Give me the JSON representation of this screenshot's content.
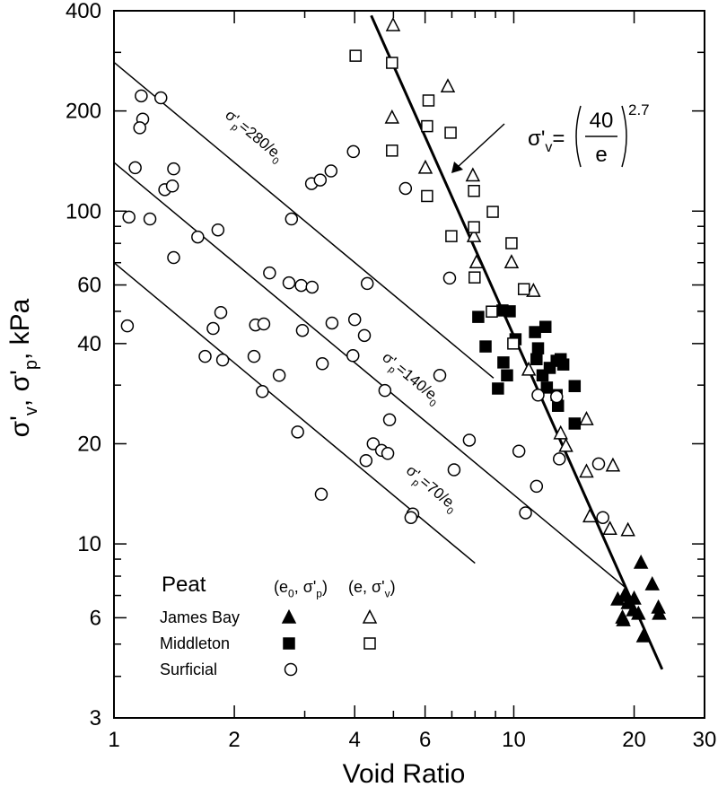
{
  "chart_data": {
    "type": "scatter",
    "xlabel": "Void Ratio",
    "ylabel": [
      "σ'",
      "v",
      ", σ'",
      "p",
      ", kPa"
    ],
    "xscale": "log",
    "yscale": "log",
    "xlim": [
      1,
      30
    ],
    "ylim": [
      3,
      400
    ],
    "xticks": [
      1,
      2,
      4,
      6,
      10,
      20,
      30
    ],
    "yticks": [
      3,
      6,
      10,
      20,
      40,
      60,
      100,
      200,
      400
    ],
    "xminorticks": [
      3,
      5,
      7,
      8,
      9
    ],
    "yminorticks": [
      4,
      5,
      7,
      8,
      9,
      30,
      50,
      70,
      80,
      90,
      300
    ],
    "color": "#000000",
    "legend": {
      "title": "Peat",
      "filled_heading": [
        "(e",
        "0",
        ", σ'",
        "p",
        ")"
      ],
      "open_heading": [
        "(e, σ'",
        "v",
        ")"
      ],
      "corner": "lower left"
    },
    "series": [
      {
        "name": "James Bay",
        "marker": "triangle",
        "filled": true,
        "x": [
          20.8,
          18.2,
          18.9,
          19.3,
          20.0,
          18.7,
          18.8,
          19.9,
          20.5,
          21.1,
          22.2,
          23.0,
          23.1
        ],
        "values": [
          8.78,
          6.81,
          6.98,
          6.64,
          6.85,
          6.01,
          5.9,
          6.32,
          6.17,
          5.28,
          7.56,
          6.44,
          6.17
        ]
      },
      {
        "name": "James Bay",
        "marker": "triangle",
        "filled": false,
        "x": [
          4.99,
          6.84,
          4.96,
          6.01,
          7.9,
          7.95,
          8.07,
          9.87,
          11.2,
          10.9,
          13.1,
          13.5,
          15.2,
          15.2,
          15.5,
          17.7,
          17.4,
          19.3
        ],
        "values": [
          362,
          237,
          191,
          135,
          128,
          84.1,
          70.2,
          70.2,
          57.6,
          33.4,
          21.5,
          19.7,
          23.7,
          16.5,
          12.1,
          17.2,
          11.1,
          11.0
        ]
      },
      {
        "name": "Middleton",
        "marker": "square",
        "filled": true,
        "x": [
          8.15,
          8.5,
          9.37,
          9.77,
          9.42,
          9.13,
          10.1,
          11.3,
          12.0,
          11.5,
          11.4,
          11.8,
          12.3,
          12.8,
          13.1,
          13.3,
          12.1,
          12.8,
          14.2,
          14.2,
          12.9,
          9.62
        ],
        "values": [
          48.1,
          39.2,
          50.3,
          50.0,
          35.1,
          29.3,
          41.2,
          43.3,
          44.9,
          38.7,
          35.9,
          32.1,
          33.8,
          35.5,
          35.9,
          34.6,
          29.5,
          28.0,
          29.8,
          23.0,
          26.0,
          32.1
        ]
      },
      {
        "name": "Middleton",
        "marker": "square",
        "filled": false,
        "x": [
          4.02,
          4.96,
          6.07,
          6.12,
          6.07,
          6.95,
          6.98,
          7.95,
          7.95,
          8.86,
          7.98,
          8.81,
          9.87,
          10.6,
          9.97,
          4.96
        ],
        "values": [
          293,
          279,
          180,
          215,
          111,
          172,
          84.1,
          115,
          89.5,
          99.5,
          63.2,
          49.9,
          80.1,
          58.3,
          40.0,
          152
        ]
      },
      {
        "name": "Surficial",
        "marker": "circle",
        "filled": false,
        "x": [
          1.17,
          1.31,
          1.18,
          1.16,
          1.13,
          1.34,
          1.4,
          1.41,
          1.23,
          1.09,
          1.41,
          1.62,
          1.82,
          1.08,
          1.69,
          1.77,
          1.85,
          1.87,
          2.26,
          2.37,
          2.24,
          2.45,
          2.35,
          2.59,
          2.74,
          2.94,
          3.13,
          2.78,
          2.96,
          3.51,
          3.32,
          2.88,
          3.3,
          3.12,
          3.28,
          3.49,
          3.97,
          4.0,
          3.96,
          4.23,
          4.3,
          4.45,
          4.76,
          4.89,
          4.67,
          4.84,
          4.27,
          5.36,
          6.91,
          6.53,
          7.74,
          7.09,
          5.59,
          5.53,
          10.3,
          10.7,
          11.4,
          11.5,
          12.8,
          13.0,
          16.3,
          16.7
        ],
        "values": [
          222,
          219,
          189,
          178,
          135,
          116,
          119,
          134,
          94.7,
          96,
          72.5,
          83.6,
          87.8,
          45.2,
          36.6,
          44.4,
          49.6,
          35.7,
          45.5,
          45.8,
          36.6,
          65.2,
          28.7,
          32.1,
          60.9,
          59.8,
          59.1,
          94.7,
          43.8,
          46.1,
          34.8,
          21.7,
          14.1,
          121,
          124,
          132,
          151,
          47.2,
          36.8,
          42.3,
          60.6,
          20.0,
          28.9,
          23.6,
          19.1,
          18.7,
          17.8,
          117,
          62.9,
          32.1,
          20.5,
          16.7,
          12.3,
          12.0,
          19.0,
          12.4,
          14.9,
          28.0,
          27.7,
          18.0,
          17.4,
          12.0
        ]
      }
    ],
    "lines": [
      {
        "label": [
          "σ'",
          "p",
          "=280/e",
          "0"
        ],
        "x": [
          1,
          8.9
        ],
        "y": [
          280,
          31.5
        ],
        "width": 1.5
      },
      {
        "label": [
          "σ'",
          "p",
          "=140/e",
          "0"
        ],
        "x": [
          1,
          19
        ],
        "y": [
          140,
          7.4
        ],
        "width": 1.5
      },
      {
        "label": [
          "σ'",
          "p",
          "=70/e",
          "0"
        ],
        "x": [
          1,
          8
        ],
        "y": [
          70,
          8.75
        ],
        "width": 1.5
      },
      {
        "x": [
          4.4,
          23.5
        ],
        "y": [
          387,
          4.2
        ],
        "width": 3
      }
    ],
    "equation": {
      "lhs": [
        "σ'",
        "v",
        "="
      ],
      "numerator": "40",
      "denominator": "e",
      "exponent": "2.7"
    }
  }
}
